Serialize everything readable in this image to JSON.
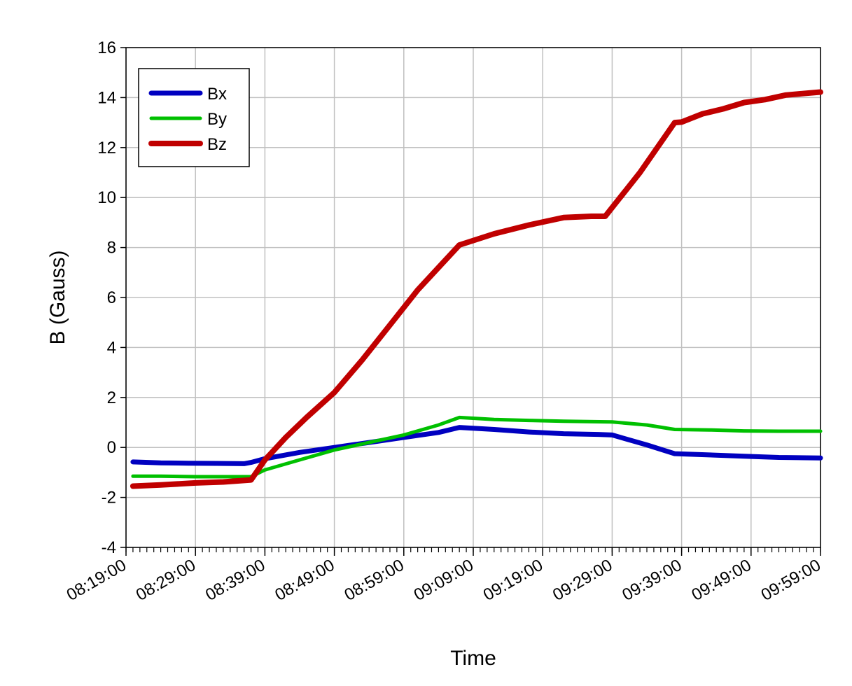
{
  "chart_data": {
    "type": "line",
    "xlabel": "Time",
    "ylabel": "B (Gauss)",
    "x_ticks": [
      "08:19:00",
      "08:29:00",
      "08:39:00",
      "08:49:00",
      "08:59:00",
      "09:09:00",
      "09:19:00",
      "09:29:00",
      "09:39:00",
      "09:49:00",
      "09:59:00"
    ],
    "xlim": [
      "08:19:00",
      "09:59:00"
    ],
    "ylim": [
      -4,
      16
    ],
    "y_ticks": [
      -4,
      -2,
      0,
      2,
      4,
      6,
      8,
      10,
      12,
      14,
      16
    ],
    "y_tick_labels": [
      "-4",
      "-2",
      "0",
      "2",
      "4",
      "6",
      "8",
      "10",
      "12",
      "14",
      "16"
    ],
    "grid": true,
    "legend_position": "top-left",
    "series": [
      {
        "name": "Bx",
        "color": "#0000c0",
        "points": [
          [
            "08:20:00",
            -0.58
          ],
          [
            "08:24:00",
            -0.62
          ],
          [
            "08:28:00",
            -0.63
          ],
          [
            "08:32:00",
            -0.64
          ],
          [
            "08:36:00",
            -0.65
          ],
          [
            "08:37:00",
            -0.6
          ],
          [
            "08:39:00",
            -0.45
          ],
          [
            "08:44:00",
            -0.2
          ],
          [
            "08:49:00",
            0.0
          ],
          [
            "08:54:00",
            0.2
          ],
          [
            "08:59:00",
            0.4
          ],
          [
            "09:04:00",
            0.6
          ],
          [
            "09:07:00",
            0.8
          ],
          [
            "09:12:00",
            0.72
          ],
          [
            "09:17:00",
            0.62
          ],
          [
            "09:22:00",
            0.55
          ],
          [
            "09:27:00",
            0.52
          ],
          [
            "09:29:00",
            0.5
          ],
          [
            "09:34:00",
            0.1
          ],
          [
            "09:38:00",
            -0.25
          ],
          [
            "09:43:00",
            -0.3
          ],
          [
            "09:48:00",
            -0.35
          ],
          [
            "09:53:00",
            -0.4
          ],
          [
            "09:59:00",
            -0.42
          ]
        ]
      },
      {
        "name": "By",
        "color": "#00c000",
        "points": [
          [
            "08:20:00",
            -1.15
          ],
          [
            "08:24:00",
            -1.15
          ],
          [
            "08:29:00",
            -1.17
          ],
          [
            "08:33:00",
            -1.17
          ],
          [
            "08:37:00",
            -1.17
          ],
          [
            "08:39:00",
            -0.9
          ],
          [
            "08:44:00",
            -0.5
          ],
          [
            "08:49:00",
            -0.1
          ],
          [
            "08:54:00",
            0.2
          ],
          [
            "08:59:00",
            0.5
          ],
          [
            "09:04:00",
            0.9
          ],
          [
            "09:07:00",
            1.2
          ],
          [
            "09:12:00",
            1.12
          ],
          [
            "09:17:00",
            1.08
          ],
          [
            "09:22:00",
            1.05
          ],
          [
            "09:29:00",
            1.02
          ],
          [
            "09:34:00",
            0.9
          ],
          [
            "09:38:00",
            0.72
          ],
          [
            "09:43:00",
            0.7
          ],
          [
            "09:48:00",
            0.66
          ],
          [
            "09:53:00",
            0.65
          ],
          [
            "09:59:00",
            0.65
          ]
        ]
      },
      {
        "name": "Bz",
        "color": "#c00000",
        "points": [
          [
            "08:20:00",
            -1.55
          ],
          [
            "08:24:00",
            -1.5
          ],
          [
            "08:29:00",
            -1.42
          ],
          [
            "08:33:00",
            -1.38
          ],
          [
            "08:37:00",
            -1.3
          ],
          [
            "08:39:00",
            -0.5
          ],
          [
            "08:42:00",
            0.4
          ],
          [
            "08:45:00",
            1.2
          ],
          [
            "08:49:00",
            2.2
          ],
          [
            "08:53:00",
            3.5
          ],
          [
            "08:57:00",
            4.9
          ],
          [
            "09:01:00",
            6.3
          ],
          [
            "09:07:00",
            8.1
          ],
          [
            "09:12:00",
            8.55
          ],
          [
            "09:17:00",
            8.9
          ],
          [
            "09:22:00",
            9.2
          ],
          [
            "09:26:00",
            9.25
          ],
          [
            "09:28:00",
            9.25
          ],
          [
            "09:33:00",
            11.0
          ],
          [
            "09:38:00",
            13.0
          ],
          [
            "09:39:00",
            13.02
          ],
          [
            "09:42:00",
            13.35
          ],
          [
            "09:45:00",
            13.55
          ],
          [
            "09:48:00",
            13.8
          ],
          [
            "09:51:00",
            13.92
          ],
          [
            "09:54:00",
            14.1
          ],
          [
            "09:59:00",
            14.22
          ]
        ]
      }
    ]
  }
}
